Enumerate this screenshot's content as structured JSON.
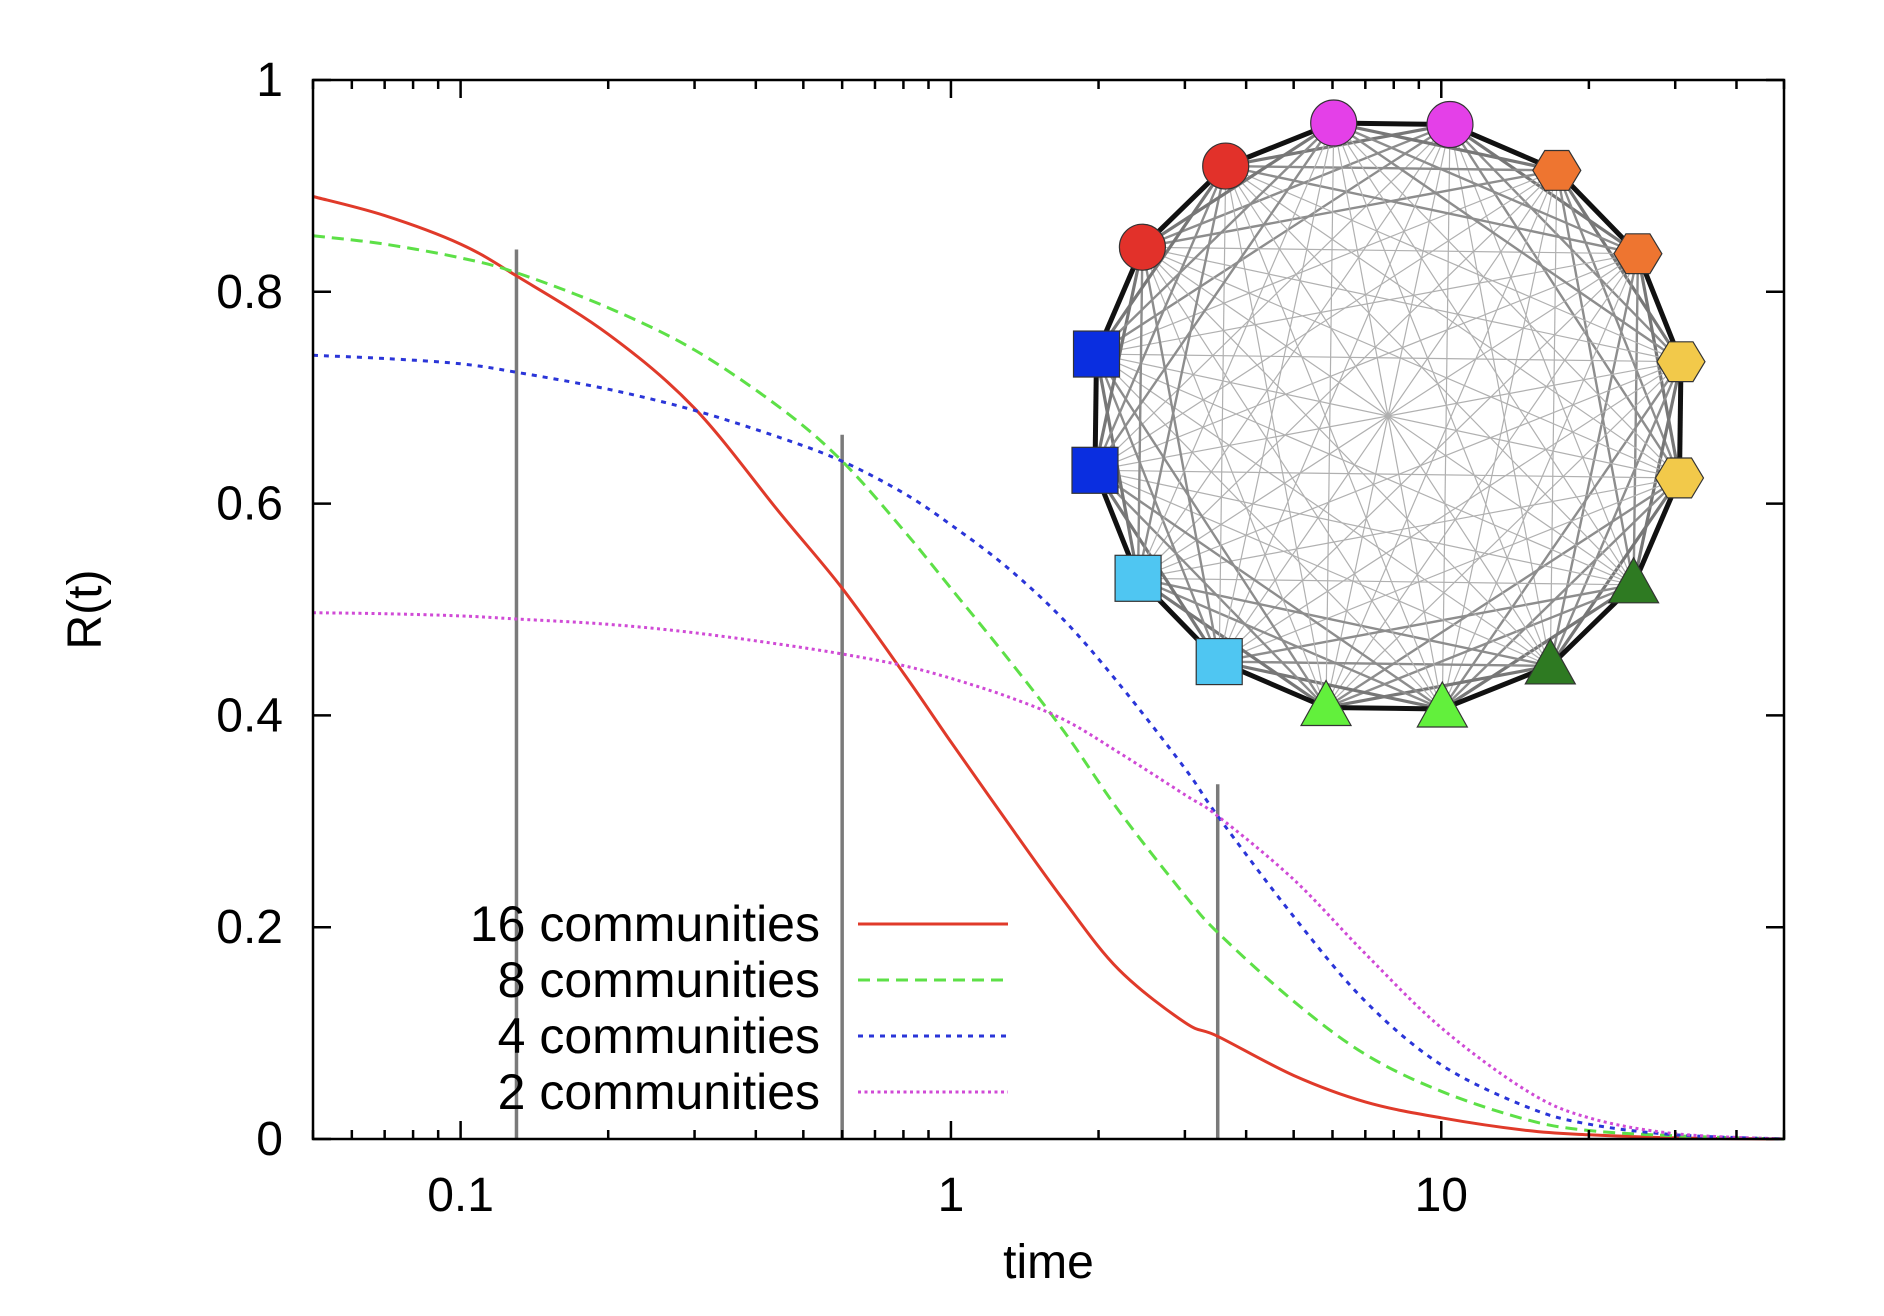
{
  "chart_data": {
    "type": "line",
    "title": "",
    "xlabel": "time",
    "ylabel": "R(t)",
    "xscale": "log",
    "xlim": [
      0.05,
      50
    ],
    "ylim": [
      0,
      1
    ],
    "x_ticks": [
      {
        "value": 0.1,
        "label": "0.1"
      },
      {
        "value": 1,
        "label": "1"
      },
      {
        "value": 10,
        "label": "10"
      }
    ],
    "y_ticks": [
      {
        "value": 0,
        "label": "0"
      },
      {
        "value": 0.2,
        "label": "0.2"
      },
      {
        "value": 0.4,
        "label": "0.4"
      },
      {
        "value": 0.6,
        "label": "0.6"
      },
      {
        "value": 0.8,
        "label": "0.8"
      },
      {
        "value": 1,
        "label": "1"
      }
    ],
    "legend_position": "bottom-left",
    "series": [
      {
        "name": "16 communities",
        "color": "#e03a2a",
        "dash": "solid",
        "x": [
          0.05,
          0.07,
          0.1,
          0.13,
          0.2,
          0.3,
          0.45,
          0.6,
          0.8,
          1.0,
          1.3,
          1.7,
          2.2,
          3.0,
          3.5,
          5,
          7,
          10,
          15,
          20,
          30,
          50
        ],
        "y": [
          0.89,
          0.872,
          0.845,
          0.815,
          0.76,
          0.69,
          0.59,
          0.52,
          0.44,
          0.375,
          0.3,
          0.225,
          0.16,
          0.11,
          0.097,
          0.06,
          0.035,
          0.02,
          0.008,
          0.004,
          0.001,
          0.0
        ]
      },
      {
        "name": "8 communities",
        "color": "#5de047",
        "dash": "dashed",
        "x": [
          0.05,
          0.07,
          0.1,
          0.13,
          0.2,
          0.3,
          0.45,
          0.6,
          0.8,
          1.0,
          1.3,
          1.7,
          2.2,
          3.0,
          3.5,
          5,
          7,
          10,
          15,
          20,
          30,
          50
        ],
        "y": [
          0.853,
          0.845,
          0.832,
          0.818,
          0.785,
          0.745,
          0.69,
          0.64,
          0.575,
          0.52,
          0.455,
          0.385,
          0.31,
          0.23,
          0.195,
          0.13,
          0.08,
          0.045,
          0.018,
          0.008,
          0.003,
          0.0
        ]
      },
      {
        "name": "4 communities",
        "color": "#2a35d8",
        "dash": "dotted",
        "x": [
          0.05,
          0.07,
          0.1,
          0.13,
          0.2,
          0.3,
          0.45,
          0.6,
          0.8,
          1.0,
          1.3,
          1.7,
          2.2,
          3.0,
          3.5,
          5,
          7,
          10,
          15,
          20,
          30,
          50
        ],
        "y": [
          0.74,
          0.737,
          0.732,
          0.724,
          0.708,
          0.688,
          0.662,
          0.64,
          0.61,
          0.58,
          0.54,
          0.49,
          0.43,
          0.35,
          0.305,
          0.21,
          0.13,
          0.07,
          0.03,
          0.014,
          0.004,
          0.0
        ]
      },
      {
        "name": "2 communities",
        "color": "#d04ad6",
        "dash": "dotted-fine",
        "x": [
          0.05,
          0.07,
          0.1,
          0.13,
          0.2,
          0.3,
          0.45,
          0.6,
          0.8,
          1.0,
          1.3,
          1.7,
          2.2,
          3.0,
          3.5,
          5,
          7,
          10,
          15,
          20,
          30,
          50
        ],
        "y": [
          0.497,
          0.496,
          0.494,
          0.491,
          0.486,
          0.478,
          0.467,
          0.458,
          0.447,
          0.435,
          0.418,
          0.396,
          0.365,
          0.325,
          0.305,
          0.245,
          0.175,
          0.105,
          0.045,
          0.02,
          0.005,
          0.0
        ]
      }
    ],
    "vertical_markers": [
      {
        "x": 0.13,
        "y_top": 0.84
      },
      {
        "x": 0.6,
        "y_top": 0.665
      },
      {
        "x": 3.5,
        "y_top": 0.335
      }
    ],
    "inset_network": {
      "node_count": 16,
      "nodes": [
        {
          "shape": "circle",
          "color": "#e440e8"
        },
        {
          "shape": "hexagon",
          "color": "#ee7530"
        },
        {
          "shape": "hexagon",
          "color": "#ee7530"
        },
        {
          "shape": "hexagon",
          "color": "#f2c94a"
        },
        {
          "shape": "hexagon",
          "color": "#f2c94a"
        },
        {
          "shape": "triangle",
          "color": "#2e7a22"
        },
        {
          "shape": "triangle",
          "color": "#2e7a22"
        },
        {
          "shape": "triangle",
          "color": "#62f03c"
        },
        {
          "shape": "triangle",
          "color": "#62f03c"
        },
        {
          "shape": "square",
          "color": "#4fc6f2"
        },
        {
          "shape": "square",
          "color": "#4fc6f2"
        },
        {
          "shape": "square",
          "color": "#0a2ee0"
        },
        {
          "shape": "square",
          "color": "#0a2ee0"
        },
        {
          "shape": "circle",
          "color": "#e2312a"
        },
        {
          "shape": "circle",
          "color": "#e2312a"
        },
        {
          "shape": "circle",
          "color": "#e440e8"
        }
      ]
    }
  }
}
